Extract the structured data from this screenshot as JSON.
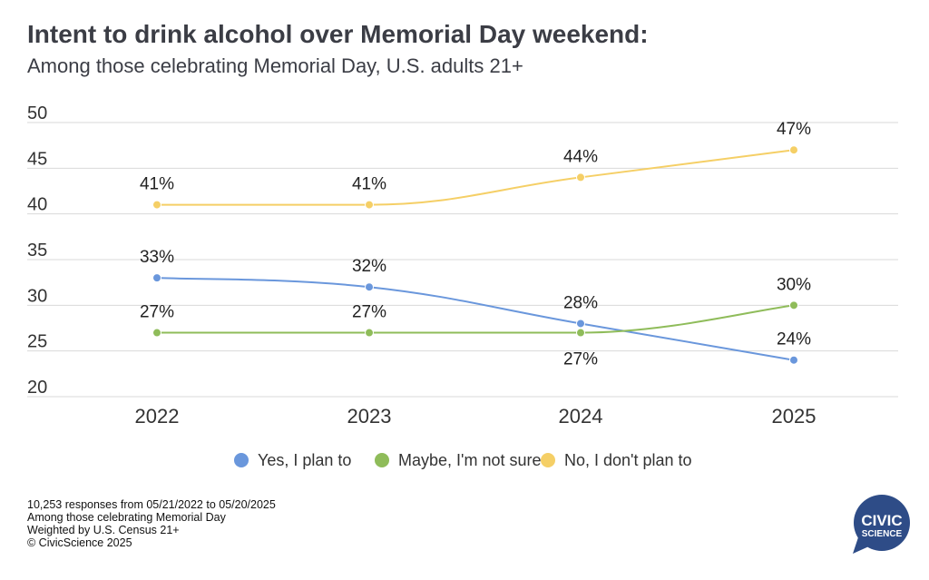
{
  "chart_data": {
    "type": "line",
    "title": "Intent to drink alcohol over Memorial Day weekend:",
    "subtitle": "Among those celebrating Memorial Day, U.S. adults 21+",
    "categories": [
      "2022",
      "2023",
      "2024",
      "2025"
    ],
    "ylim": [
      20,
      50
    ],
    "yticks": [
      "20",
      "25",
      "30",
      "35",
      "40",
      "45",
      "50"
    ],
    "grid": true,
    "legend_position": "bottom",
    "series": [
      {
        "name": "Yes, I plan to",
        "color": "#6a97dc",
        "values": [
          33,
          32,
          28,
          24
        ],
        "labels": [
          "33%",
          "32%",
          "28%",
          "24%"
        ]
      },
      {
        "name": "Maybe, I'm not sure",
        "color": "#8fbc5a",
        "values": [
          27,
          27,
          27,
          30
        ],
        "labels": [
          "27%",
          "27%",
          "27%",
          "30%"
        ]
      },
      {
        "name": "No, I don't plan to",
        "color": "#f5cf66",
        "values": [
          41,
          41,
          44,
          47
        ],
        "labels": [
          "41%",
          "41%",
          "44%",
          "47%"
        ]
      }
    ]
  },
  "footer": {
    "lines": [
      "10,253 responses from 05/21/2022 to 05/20/2025",
      "Among those celebrating Memorial Day",
      "Weighted by U.S. Census 21+",
      "© CivicScience 2025"
    ]
  },
  "logo": {
    "line1": "CIVIC",
    "line2": "SCIENCE",
    "color": "#2e4c87"
  }
}
